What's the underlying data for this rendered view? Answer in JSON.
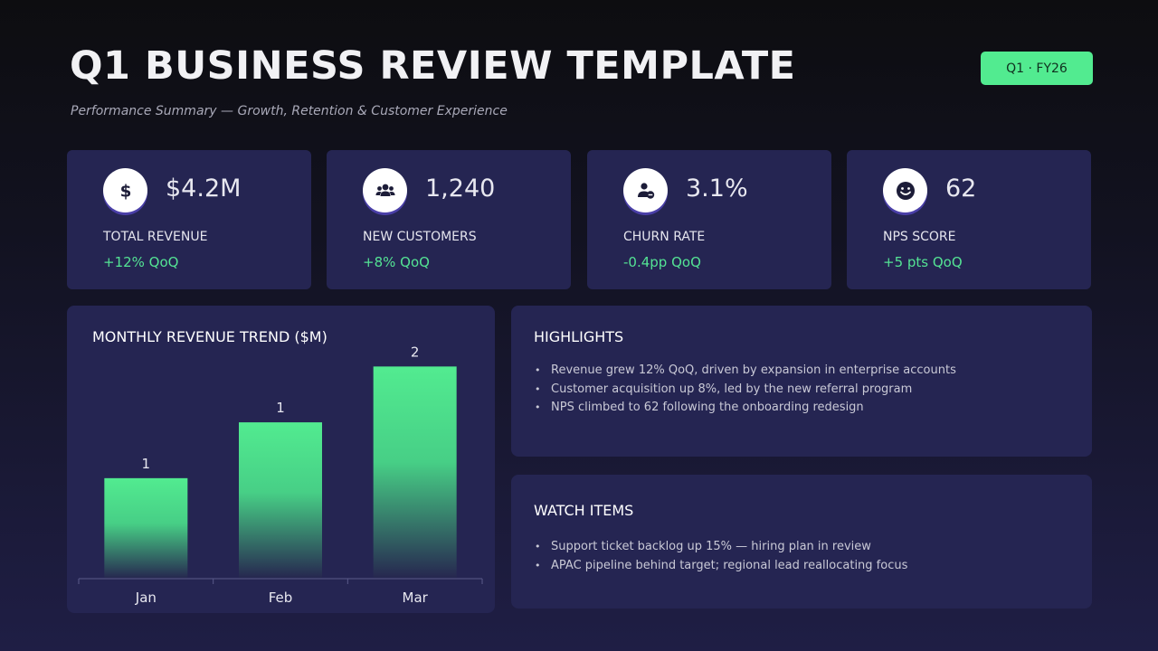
{
  "header": {
    "title": "Q1 BUSINESS REVIEW TEMPLATE",
    "subtitle": "Performance Summary — Growth, Retention & Customer Experience",
    "badge": "Q1 · FY26"
  },
  "kpis": [
    {
      "icon": "dollar-icon",
      "value": "$4.2M",
      "label": "TOTAL REVENUE",
      "change": "+12% QoQ"
    },
    {
      "icon": "users-icon",
      "value": "1,240",
      "label": "NEW CUSTOMERS",
      "change": "+8% QoQ"
    },
    {
      "icon": "user-minus-icon",
      "value": "3.1%",
      "label": "CHURN RATE",
      "change": "-0.4pp QoQ"
    },
    {
      "icon": "smile-icon",
      "value": "62",
      "label": "NPS SCORE",
      "change": "+5 pts QoQ"
    }
  ],
  "chart_panel": {
    "title": "MONTHLY REVENUE TREND ($M)"
  },
  "chart_data": {
    "type": "bar",
    "title": "MONTHLY REVENUE TREND ($M)",
    "categories": [
      "Jan",
      "Feb",
      "Mar"
    ],
    "values": [
      0.9,
      1.4,
      1.9
    ],
    "data_labels": [
      "1",
      "1",
      "2"
    ],
    "ylim": [
      0,
      2.0
    ],
    "grid": false,
    "colors": {
      "bar_top": "#52eb90",
      "bar_bottom": "#26264f",
      "axis": "#5a5a8a"
    }
  },
  "highlights": {
    "title": "HIGHLIGHTS",
    "items": [
      "Revenue grew 12% QoQ, driven by expansion in enterprise accounts",
      "Customer acquisition up 8%, led by the new referral program",
      "NPS climbed to 62 following the onboarding redesign"
    ]
  },
  "watch_items": {
    "title": "WATCH ITEMS",
    "items": [
      "Support ticket backlog up 15% — hiring plan in review",
      "APAC pipeline behind target; regional lead reallocating focus"
    ]
  },
  "colors": {
    "accent": "#52eb90",
    "card_bg": "#252552",
    "background_top": "#0d0d10",
    "background_bottom": "#1f1e45",
    "positive": "#54e394"
  }
}
